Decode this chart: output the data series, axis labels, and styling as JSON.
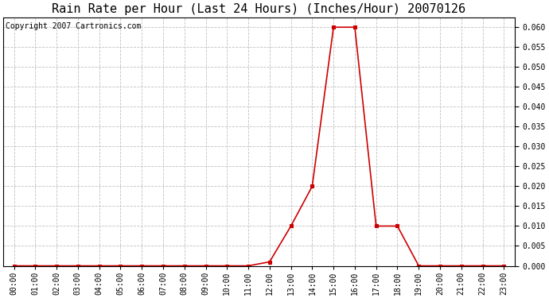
{
  "title": "Rain Rate per Hour (Last 24 Hours) (Inches/Hour) 20070126",
  "copyright_text": "Copyright 2007 Cartronics.com",
  "hours": [
    0,
    1,
    2,
    3,
    4,
    5,
    6,
    7,
    8,
    9,
    10,
    11,
    12,
    13,
    14,
    15,
    16,
    17,
    18,
    19,
    20,
    21,
    22,
    23
  ],
  "tick_labels": [
    "00:00",
    "01:00",
    "02:00",
    "03:00",
    "04:00",
    "05:00",
    "06:00",
    "07:00",
    "08:00",
    "09:00",
    "10:00",
    "11:00",
    "12:00",
    "13:00",
    "14:00",
    "15:00",
    "16:00",
    "17:00",
    "18:00",
    "19:00",
    "20:00",
    "21:00",
    "22:00",
    "23:00"
  ],
  "values": [
    0.0,
    0.0,
    0.0,
    0.0,
    0.0,
    0.0,
    0.0,
    0.0,
    0.0,
    0.0,
    0.0,
    0.0,
    0.001,
    0.01,
    0.02,
    0.06,
    0.06,
    0.01,
    0.01,
    0.0,
    0.0,
    0.0,
    0.0,
    0.0
  ],
  "line_color": "#cc0000",
  "marker": "s",
  "marker_size": 2.5,
  "marker_color": "#cc0000",
  "ylim": [
    0.0,
    0.0625
  ],
  "yticks": [
    0.0,
    0.005,
    0.01,
    0.015,
    0.02,
    0.025,
    0.03,
    0.035,
    0.04,
    0.045,
    0.05,
    0.055,
    0.06
  ],
  "background_color": "#ffffff",
  "grid_color": "#c0c0c0",
  "title_fontsize": 11,
  "copyright_fontsize": 7,
  "tick_fontsize": 7,
  "figwidth": 6.9,
  "figheight": 3.75,
  "dpi": 100
}
